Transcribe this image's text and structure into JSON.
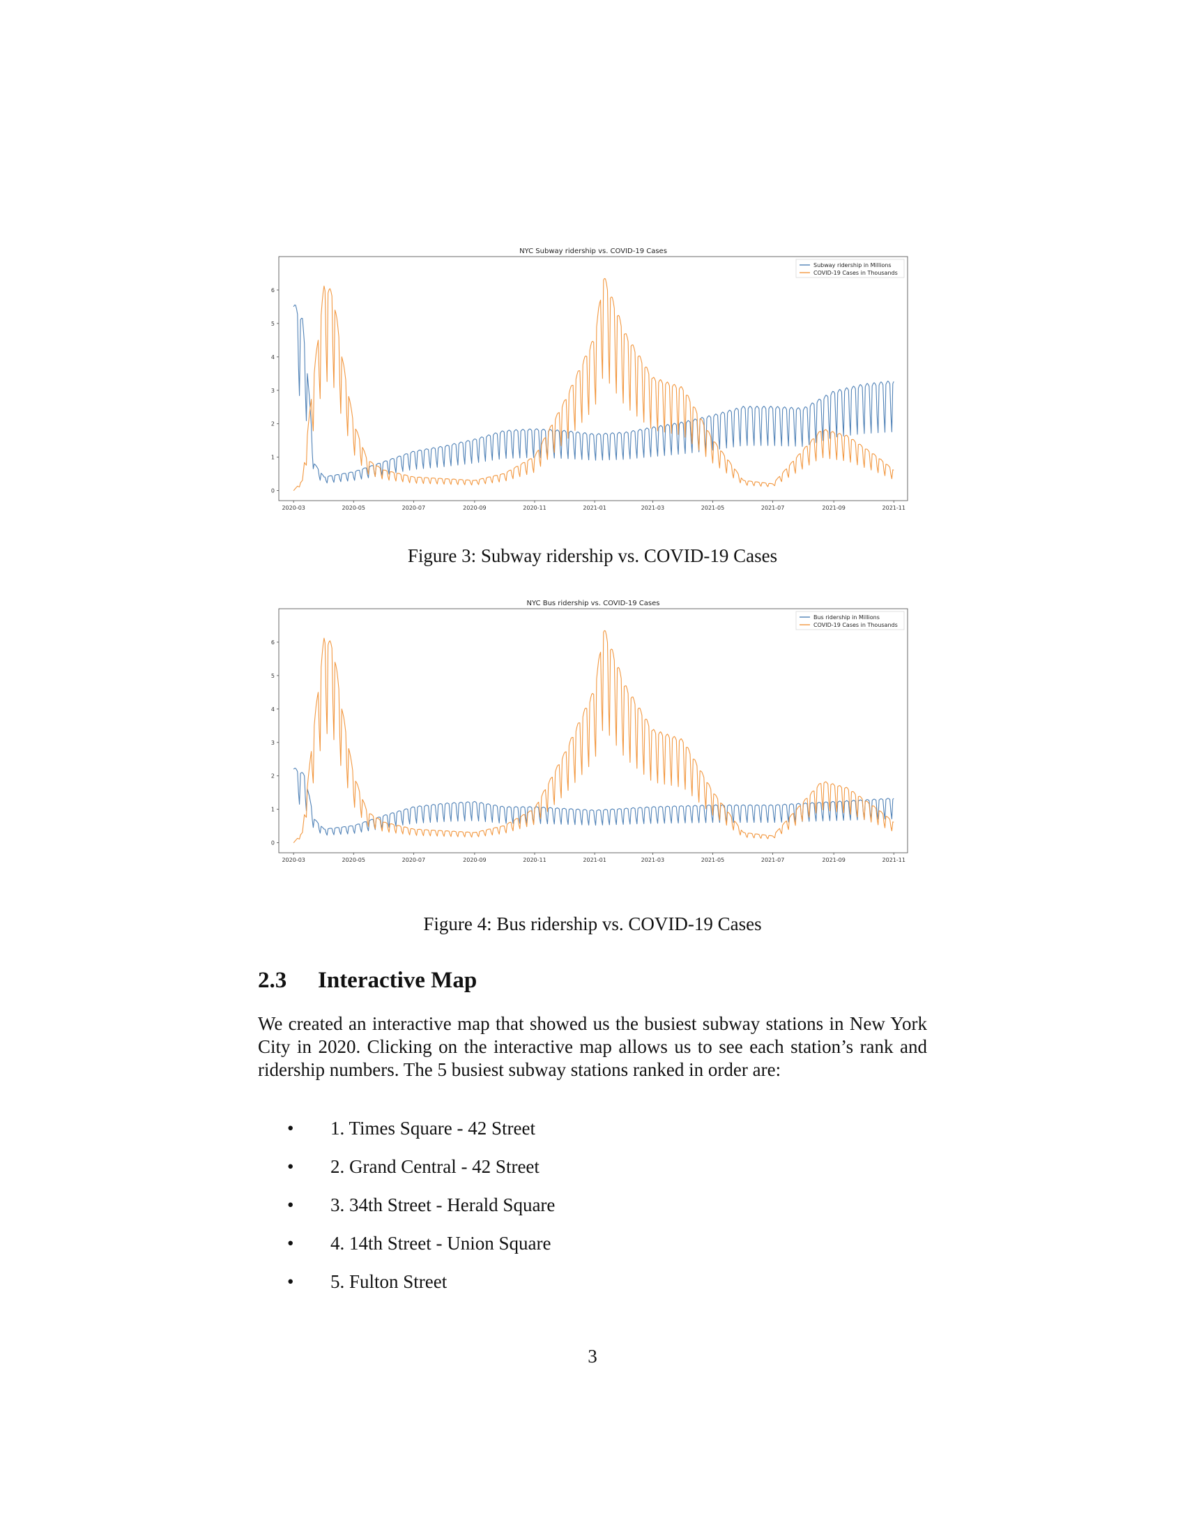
{
  "figures": [
    {
      "id": "figure-3",
      "caption": "Figure 3: Subway ridership vs. COVID-19 Cases"
    },
    {
      "id": "figure-4",
      "caption": "Figure 4: Bus ridership vs. COVID-19 Cases"
    }
  ],
  "chart_data": [
    {
      "type": "line",
      "title": "NYC Subway ridership vs. COVID-19 Cases",
      "xlabel": "",
      "ylabel": "",
      "x_ticks": [
        "2020-03",
        "2020-05",
        "2020-07",
        "2020-09",
        "2020-11",
        "2021-01",
        "2021-03",
        "2021-05",
        "2021-07",
        "2021-09",
        "2021-11"
      ],
      "xlim": [
        "2020-02-15",
        "2021-11-15"
      ],
      "y_ticks": [
        0,
        1,
        2,
        3,
        4,
        5,
        6
      ],
      "ylim": [
        -0.3,
        7.0
      ],
      "grid": false,
      "legend_position": "top-right",
      "series": [
        {
          "name": "Subway ridership in Millions",
          "color": "#4f81b6",
          "weekly_oscillation": true,
          "points": [
            [
              "2020-03-01",
              5.5
            ],
            [
              "2020-03-10",
              5.0
            ],
            [
              "2020-03-15",
              3.5
            ],
            [
              "2020-03-22",
              0.8
            ],
            [
              "2020-04-01",
              0.4
            ],
            [
              "2020-05-01",
              0.55
            ],
            [
              "2020-06-01",
              0.85
            ],
            [
              "2020-07-01",
              1.15
            ],
            [
              "2020-08-01",
              1.3
            ],
            [
              "2020-09-01",
              1.5
            ],
            [
              "2020-10-01",
              1.75
            ],
            [
              "2020-11-01",
              1.8
            ],
            [
              "2020-12-01",
              1.75
            ],
            [
              "2021-01-01",
              1.65
            ],
            [
              "2021-02-01",
              1.7
            ],
            [
              "2021-03-01",
              1.85
            ],
            [
              "2021-04-01",
              2.0
            ],
            [
              "2021-05-01",
              2.2
            ],
            [
              "2021-06-01",
              2.45
            ],
            [
              "2021-07-01",
              2.45
            ],
            [
              "2021-08-01",
              2.4
            ],
            [
              "2021-09-01",
              2.9
            ],
            [
              "2021-10-01",
              3.1
            ],
            [
              "2021-11-01",
              3.2
            ]
          ]
        },
        {
          "name": "COVID-19 Cases in Thousands",
          "color": "#f2973f",
          "weekly_oscillation": true,
          "points": [
            [
              "2020-03-01",
              0.0
            ],
            [
              "2020-03-10",
              0.3
            ],
            [
              "2020-03-20",
              3.0
            ],
            [
              "2020-04-01",
              6.0
            ],
            [
              "2020-04-10",
              5.8
            ],
            [
              "2020-04-20",
              3.8
            ],
            [
              "2020-05-01",
              2.0
            ],
            [
              "2020-05-15",
              0.9
            ],
            [
              "2020-06-01",
              0.6
            ],
            [
              "2020-07-01",
              0.4
            ],
            [
              "2020-08-01",
              0.35
            ],
            [
              "2020-09-01",
              0.3
            ],
            [
              "2020-10-01",
              0.5
            ],
            [
              "2020-11-01",
              1.0
            ],
            [
              "2020-12-01",
              2.6
            ],
            [
              "2021-01-01",
              4.5
            ],
            [
              "2021-01-10",
              6.3
            ],
            [
              "2021-02-01",
              4.6
            ],
            [
              "2021-03-01",
              3.3
            ],
            [
              "2021-04-01",
              3.0
            ],
            [
              "2021-05-01",
              1.5
            ],
            [
              "2021-06-01",
              0.3
            ],
            [
              "2021-07-01",
              0.2
            ],
            [
              "2021-08-01",
              1.2
            ],
            [
              "2021-08-20",
              1.8
            ],
            [
              "2021-09-15",
              1.6
            ],
            [
              "2021-10-15",
              1.0
            ],
            [
              "2021-11-01",
              0.6
            ]
          ]
        }
      ]
    },
    {
      "type": "line",
      "title": "NYC Bus ridership vs. COVID-19 Cases",
      "xlabel": "",
      "ylabel": "",
      "x_ticks": [
        "2020-03",
        "2020-05",
        "2020-07",
        "2020-09",
        "2020-11",
        "2021-01",
        "2021-03",
        "2021-05",
        "2021-07",
        "2021-09",
        "2021-11"
      ],
      "xlim": [
        "2020-02-15",
        "2021-11-15"
      ],
      "y_ticks": [
        0,
        1,
        2,
        3,
        4,
        5,
        6
      ],
      "ylim": [
        -0.3,
        7.0
      ],
      "grid": false,
      "legend_position": "top-right",
      "series": [
        {
          "name": "Bus ridership in Millions",
          "color": "#4f81b6",
          "weekly_oscillation": true,
          "points": [
            [
              "2020-03-01",
              2.2
            ],
            [
              "2020-03-12",
              2.0
            ],
            [
              "2020-03-22",
              0.7
            ],
            [
              "2020-04-01",
              0.4
            ],
            [
              "2020-05-01",
              0.5
            ],
            [
              "2020-06-01",
              0.8
            ],
            [
              "2020-07-01",
              1.05
            ],
            [
              "2020-08-01",
              1.15
            ],
            [
              "2020-09-01",
              1.2
            ],
            [
              "2020-10-01",
              1.05
            ],
            [
              "2020-11-01",
              1.05
            ],
            [
              "2020-12-01",
              1.0
            ],
            [
              "2021-01-01",
              0.95
            ],
            [
              "2021-03-01",
              1.05
            ],
            [
              "2021-05-01",
              1.1
            ],
            [
              "2021-07-01",
              1.1
            ],
            [
              "2021-09-01",
              1.2
            ],
            [
              "2021-11-01",
              1.3
            ]
          ]
        },
        {
          "name": "COVID-19 Cases in Thousands",
          "color": "#f2973f",
          "weekly_oscillation": true,
          "points": [
            [
              "2020-03-01",
              0.0
            ],
            [
              "2020-03-10",
              0.3
            ],
            [
              "2020-03-20",
              3.0
            ],
            [
              "2020-04-01",
              6.0
            ],
            [
              "2020-04-10",
              5.8
            ],
            [
              "2020-04-20",
              3.8
            ],
            [
              "2020-05-01",
              2.0
            ],
            [
              "2020-05-15",
              0.9
            ],
            [
              "2020-06-01",
              0.6
            ],
            [
              "2020-07-01",
              0.4
            ],
            [
              "2020-08-01",
              0.35
            ],
            [
              "2020-09-01",
              0.3
            ],
            [
              "2020-10-01",
              0.5
            ],
            [
              "2020-11-01",
              1.0
            ],
            [
              "2020-12-01",
              2.6
            ],
            [
              "2021-01-01",
              4.5
            ],
            [
              "2021-01-10",
              6.3
            ],
            [
              "2021-02-01",
              4.6
            ],
            [
              "2021-03-01",
              3.3
            ],
            [
              "2021-04-01",
              3.0
            ],
            [
              "2021-05-01",
              1.5
            ],
            [
              "2021-06-01",
              0.3
            ],
            [
              "2021-07-01",
              0.2
            ],
            [
              "2021-08-01",
              1.2
            ],
            [
              "2021-08-20",
              1.8
            ],
            [
              "2021-09-15",
              1.6
            ],
            [
              "2021-10-15",
              1.0
            ],
            [
              "2021-11-01",
              0.6
            ]
          ]
        }
      ]
    }
  ],
  "section": {
    "number": "2.3",
    "title": "Interactive Map",
    "paragraph": "We created an interactive map that showed us the busiest subway stations in New York City in 2020. Clicking on the interactive map allows us to see each station’s rank and ridership numbers. The 5 busiest subway stations ranked in order are:",
    "stations": [
      "1. Times Square - 42 Street",
      "2. Grand Central - 42 Street",
      "3. 34th Street - Herald Square",
      "4. 14th Street - Union Square",
      "5. Fulton Street"
    ]
  },
  "page_number": "3"
}
